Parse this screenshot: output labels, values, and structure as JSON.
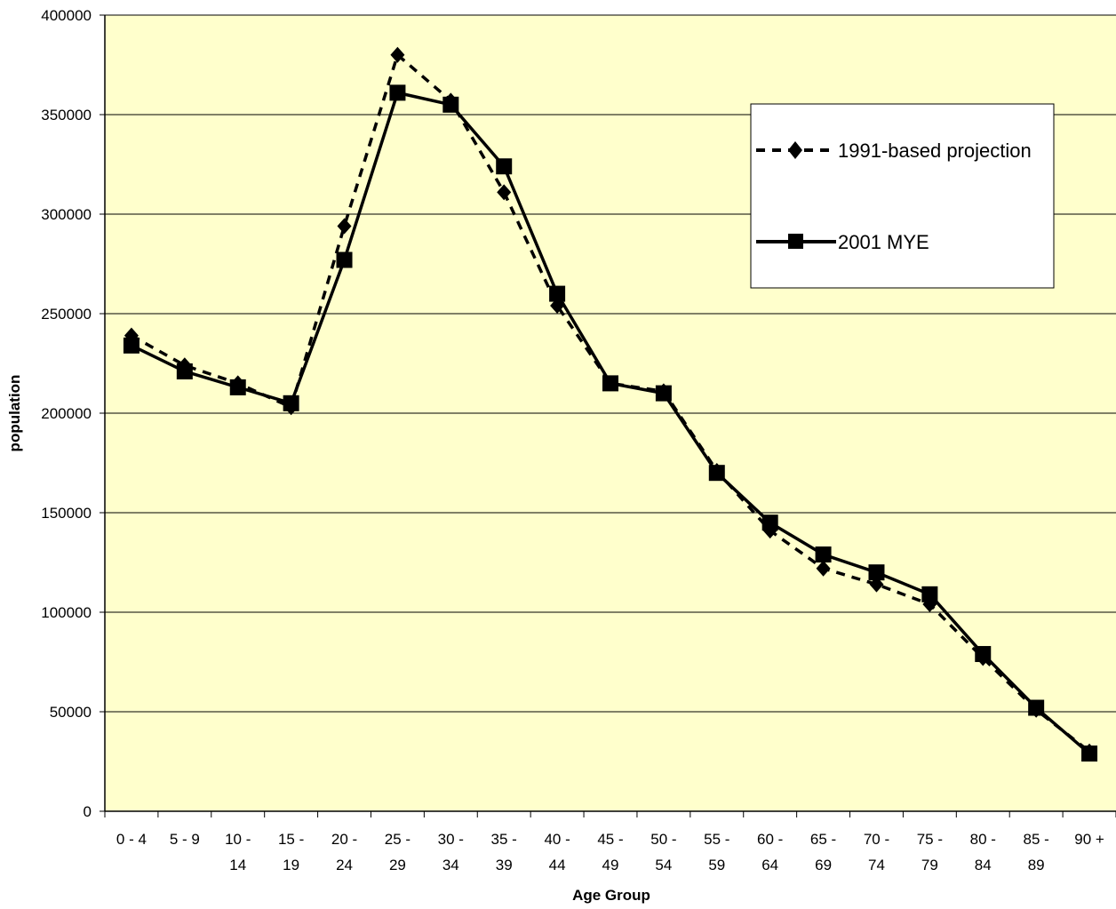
{
  "chart_data": {
    "type": "line",
    "xlabel": "Age Group",
    "ylabel": "population",
    "ylim": [
      0,
      400000
    ],
    "yticks": [
      "0",
      "50000",
      "100000",
      "150000",
      "200000",
      "250000",
      "300000",
      "350000",
      "400000"
    ],
    "grid": "horizontal",
    "plot_background": "#FFFFCC",
    "legend_position": "top-right",
    "categories": [
      [
        "0 - 4"
      ],
      [
        "5 - 9"
      ],
      [
        "10 -",
        "14"
      ],
      [
        "15 -",
        "19"
      ],
      [
        "20 -",
        "24"
      ],
      [
        "25 -",
        "29"
      ],
      [
        "30 -",
        "34"
      ],
      [
        "35 -",
        "39"
      ],
      [
        "40 -",
        "44"
      ],
      [
        "45 -",
        "49"
      ],
      [
        "50 -",
        "54"
      ],
      [
        "55 -",
        "59"
      ],
      [
        "60 -",
        "64"
      ],
      [
        "65 -",
        "69"
      ],
      [
        "70 -",
        "74"
      ],
      [
        "75 -",
        "79"
      ],
      [
        "80 -",
        "84"
      ],
      [
        "85 -",
        "89"
      ],
      [
        "90 +"
      ]
    ],
    "series": [
      {
        "name": "1991-based projection",
        "line_style": "dashed",
        "marker": "diamond",
        "color": "#000000",
        "values": [
          239000,
          224000,
          215000,
          203000,
          294000,
          380000,
          357000,
          311000,
          254000,
          215000,
          211000,
          171000,
          141000,
          122000,
          114000,
          104000,
          77000,
          51000,
          30000
        ]
      },
      {
        "name": "2001 MYE",
        "line_style": "solid",
        "marker": "square",
        "color": "#000000",
        "values": [
          234000,
          221000,
          213000,
          205000,
          277000,
          361000,
          355000,
          324000,
          260000,
          215000,
          210000,
          170000,
          145000,
          129000,
          120000,
          109000,
          79000,
          52000,
          29000
        ]
      }
    ]
  }
}
